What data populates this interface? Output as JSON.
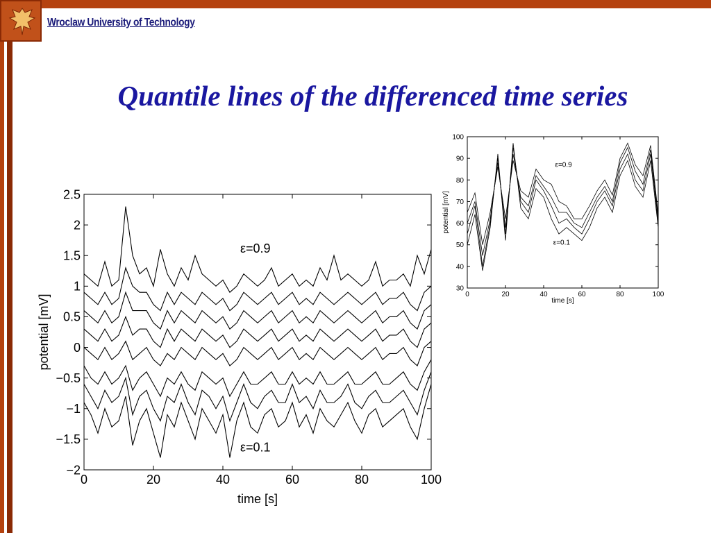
{
  "header": {
    "university": "Wroclaw University of Technology",
    "logo_name": "eagle-shield-logo"
  },
  "slide": {
    "title": "Quantile lines of the differenced time series"
  },
  "colors": {
    "accent_bar": "#b5420f",
    "title_color": "#1a17a0",
    "university_color": "#1c1c7a"
  },
  "chart_data": [
    {
      "type": "line",
      "xlabel": "time [s]",
      "ylabel": "potential [mV]",
      "xlim": [
        0,
        100
      ],
      "ylim": [
        -2,
        2.5
      ],
      "xticks": [
        0,
        20,
        40,
        60,
        80,
        100
      ],
      "xtick_labels": [
        "0",
        "20",
        "40",
        "60",
        "80",
        "100"
      ],
      "yticks": [
        -2,
        -1.5,
        -1,
        -0.5,
        0,
        0.5,
        1,
        1.5,
        2,
        2.5
      ],
      "ytick_labels": [
        "−2",
        "−1.5",
        "−1",
        "−0.5",
        "0",
        "0.5",
        "1",
        "1.5",
        "2",
        "2.5"
      ],
      "annotations": [
        {
          "text": "ε=0.9",
          "x": 45,
          "y": 1.55
        },
        {
          "text": "ε=0.1",
          "x": 45,
          "y": -1.7
        }
      ],
      "x": [
        0,
        2,
        4,
        6,
        8,
        10,
        12,
        14,
        16,
        18,
        20,
        22,
        24,
        26,
        28,
        30,
        32,
        34,
        36,
        38,
        40,
        42,
        44,
        46,
        48,
        50,
        52,
        54,
        56,
        58,
        60,
        62,
        64,
        66,
        68,
        70,
        72,
        74,
        76,
        78,
        80,
        82,
        84,
        86,
        88,
        90,
        92,
        94,
        96,
        98,
        100
      ],
      "series": [
        {
          "values": [
            -0.9,
            -1.1,
            -1.4,
            -1.0,
            -1.3,
            -1.2,
            -0.8,
            -1.6,
            -1.2,
            -1.0,
            -1.4,
            -1.8,
            -1.1,
            -1.3,
            -0.9,
            -1.2,
            -1.5,
            -1.0,
            -1.2,
            -1.4,
            -1.1,
            -1.8,
            -1.2,
            -0.9,
            -1.3,
            -1.4,
            -1.1,
            -1.0,
            -1.3,
            -1.2,
            -0.9,
            -1.3,
            -1.1,
            -1.4,
            -1.0,
            -1.2,
            -1.3,
            -1.1,
            -0.9,
            -1.2,
            -1.4,
            -1.1,
            -1.0,
            -1.3,
            -1.2,
            -1.1,
            -1.0,
            -1.3,
            -1.5,
            -1.0,
            -0.6
          ]
        },
        {
          "values": [
            -0.6,
            -0.8,
            -1.0,
            -0.7,
            -0.9,
            -0.8,
            -0.5,
            -1.1,
            -0.8,
            -0.7,
            -1.0,
            -1.2,
            -0.8,
            -0.9,
            -0.6,
            -0.9,
            -1.1,
            -0.7,
            -0.8,
            -1.0,
            -0.8,
            -1.2,
            -0.9,
            -0.6,
            -0.9,
            -1.0,
            -0.8,
            -0.7,
            -0.9,
            -0.9,
            -0.6,
            -0.9,
            -0.8,
            -1.0,
            -0.7,
            -0.9,
            -0.9,
            -0.8,
            -0.6,
            -0.9,
            -1.0,
            -0.8,
            -0.7,
            -0.9,
            -0.9,
            -0.8,
            -0.7,
            -0.9,
            -1.1,
            -0.7,
            -0.4
          ]
        },
        {
          "values": [
            -0.3,
            -0.5,
            -0.6,
            -0.4,
            -0.6,
            -0.5,
            -0.3,
            -0.7,
            -0.5,
            -0.4,
            -0.6,
            -0.8,
            -0.5,
            -0.6,
            -0.4,
            -0.6,
            -0.7,
            -0.4,
            -0.5,
            -0.6,
            -0.5,
            -0.8,
            -0.6,
            -0.4,
            -0.6,
            -0.6,
            -0.5,
            -0.4,
            -0.6,
            -0.6,
            -0.4,
            -0.6,
            -0.5,
            -0.6,
            -0.4,
            -0.6,
            -0.6,
            -0.5,
            -0.4,
            -0.6,
            -0.6,
            -0.5,
            -0.4,
            -0.6,
            -0.6,
            -0.5,
            -0.4,
            -0.6,
            -0.7,
            -0.4,
            -0.2
          ]
        },
        {
          "values": [
            0.0,
            -0.1,
            -0.2,
            0.0,
            -0.2,
            -0.1,
            0.1,
            -0.2,
            -0.1,
            0.0,
            -0.2,
            -0.3,
            -0.1,
            -0.2,
            0.0,
            -0.1,
            -0.2,
            0.0,
            -0.1,
            -0.2,
            -0.1,
            -0.3,
            -0.2,
            0.0,
            -0.1,
            -0.2,
            -0.1,
            0.0,
            -0.2,
            -0.1,
            0.0,
            -0.2,
            -0.1,
            -0.2,
            0.0,
            -0.1,
            -0.2,
            -0.1,
            0.0,
            -0.1,
            -0.2,
            -0.1,
            0.0,
            -0.2,
            -0.1,
            -0.1,
            0.0,
            -0.2,
            -0.3,
            0.0,
            0.1
          ]
        },
        {
          "values": [
            0.3,
            0.2,
            0.1,
            0.3,
            0.1,
            0.2,
            0.5,
            0.2,
            0.3,
            0.3,
            0.1,
            0.0,
            0.3,
            0.1,
            0.3,
            0.2,
            0.1,
            0.3,
            0.2,
            0.1,
            0.2,
            0.0,
            0.1,
            0.3,
            0.2,
            0.1,
            0.2,
            0.3,
            0.1,
            0.2,
            0.3,
            0.1,
            0.2,
            0.1,
            0.3,
            0.2,
            0.1,
            0.2,
            0.3,
            0.2,
            0.1,
            0.2,
            0.3,
            0.1,
            0.2,
            0.2,
            0.3,
            0.1,
            0.0,
            0.3,
            0.4
          ]
        },
        {
          "values": [
            0.6,
            0.5,
            0.4,
            0.6,
            0.4,
            0.5,
            0.9,
            0.6,
            0.6,
            0.6,
            0.4,
            0.3,
            0.6,
            0.4,
            0.6,
            0.5,
            0.4,
            0.6,
            0.5,
            0.4,
            0.5,
            0.3,
            0.4,
            0.6,
            0.5,
            0.4,
            0.5,
            0.6,
            0.4,
            0.5,
            0.6,
            0.4,
            0.5,
            0.4,
            0.6,
            0.5,
            0.4,
            0.5,
            0.6,
            0.5,
            0.4,
            0.5,
            0.6,
            0.4,
            0.5,
            0.5,
            0.6,
            0.4,
            0.3,
            0.6,
            0.7
          ]
        },
        {
          "values": [
            0.9,
            0.8,
            0.7,
            0.9,
            0.7,
            0.8,
            1.3,
            1.0,
            0.9,
            0.9,
            0.7,
            0.6,
            0.9,
            0.7,
            0.9,
            0.8,
            0.7,
            0.9,
            0.8,
            0.7,
            0.8,
            0.6,
            0.7,
            0.9,
            0.8,
            0.7,
            0.8,
            0.9,
            0.7,
            0.8,
            0.9,
            0.7,
            0.8,
            0.7,
            0.9,
            0.8,
            0.7,
            0.8,
            0.9,
            0.8,
            0.7,
            0.8,
            0.9,
            0.7,
            0.8,
            0.8,
            0.9,
            0.7,
            0.6,
            0.9,
            1.0
          ]
        },
        {
          "values": [
            1.2,
            1.1,
            1.0,
            1.4,
            1.0,
            1.1,
            2.3,
            1.5,
            1.2,
            1.3,
            1.0,
            1.6,
            1.2,
            1.0,
            1.3,
            1.1,
            1.5,
            1.2,
            1.1,
            1.0,
            1.1,
            0.9,
            1.0,
            1.2,
            1.1,
            1.0,
            1.1,
            1.3,
            1.0,
            1.1,
            1.2,
            1.0,
            1.1,
            1.0,
            1.3,
            1.1,
            1.5,
            1.1,
            1.2,
            1.1,
            1.0,
            1.1,
            1.4,
            1.0,
            1.1,
            1.1,
            1.2,
            1.0,
            1.5,
            1.2,
            1.6
          ]
        }
      ]
    },
    {
      "type": "line",
      "xlabel": "time [s]",
      "ylabel": "potential [mV]",
      "xlim": [
        0,
        100
      ],
      "ylim": [
        30,
        100
      ],
      "xticks": [
        0,
        20,
        40,
        60,
        80,
        100
      ],
      "xtick_labels": [
        "0",
        "20",
        "40",
        "60",
        "80",
        "100"
      ],
      "yticks": [
        30,
        40,
        50,
        60,
        70,
        80,
        90,
        100
      ],
      "ytick_labels": [
        "30",
        "40",
        "50",
        "60",
        "70",
        "80",
        "90",
        "100"
      ],
      "annotations": [
        {
          "text": "ε=0.9",
          "x": 46,
          "y": 86
        },
        {
          "text": "ε=0.1",
          "x": 45,
          "y": 50
        }
      ],
      "x": [
        0,
        4,
        8,
        12,
        16,
        20,
        24,
        28,
        32,
        36,
        40,
        44,
        48,
        52,
        56,
        60,
        64,
        68,
        72,
        76,
        80,
        84,
        88,
        92,
        96,
        100
      ],
      "series": [
        {
          "values": [
            55,
            68,
            40,
            60,
            90,
            55,
            95,
            70,
            65,
            80,
            75,
            68,
            60,
            62,
            58,
            55,
            62,
            70,
            75,
            68,
            85,
            92,
            80,
            75,
            92,
            60
          ]
        },
        {
          "values": [
            60,
            70,
            45,
            62,
            88,
            58,
            92,
            72,
            68,
            82,
            77,
            72,
            65,
            65,
            60,
            58,
            65,
            72,
            77,
            70,
            88,
            95,
            84,
            78,
            94,
            62
          ]
        },
        {
          "values": [
            65,
            74,
            50,
            65,
            86,
            62,
            89,
            75,
            72,
            85,
            80,
            78,
            70,
            68,
            62,
            62,
            68,
            75,
            80,
            73,
            90,
            97,
            87,
            82,
            96,
            64
          ]
        },
        {
          "values": [
            50,
            64,
            38,
            58,
            92,
            52,
            97,
            67,
            62,
            76,
            72,
            62,
            55,
            58,
            55,
            52,
            58,
            67,
            72,
            65,
            82,
            89,
            77,
            72,
            89,
            58
          ]
        }
      ]
    }
  ]
}
